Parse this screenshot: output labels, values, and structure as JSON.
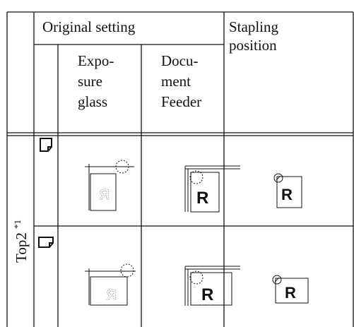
{
  "header": {
    "original_setting": "Original setting",
    "stapling_position": [
      "Stapling",
      "position"
    ],
    "exposure_glass": [
      "Expo-",
      "sure",
      "glass"
    ],
    "document_feeder": [
      "Docu-",
      "ment",
      "Feeder"
    ]
  },
  "row_label": {
    "text": "Top2",
    "note": "*1"
  },
  "diagram_letter": "R"
}
